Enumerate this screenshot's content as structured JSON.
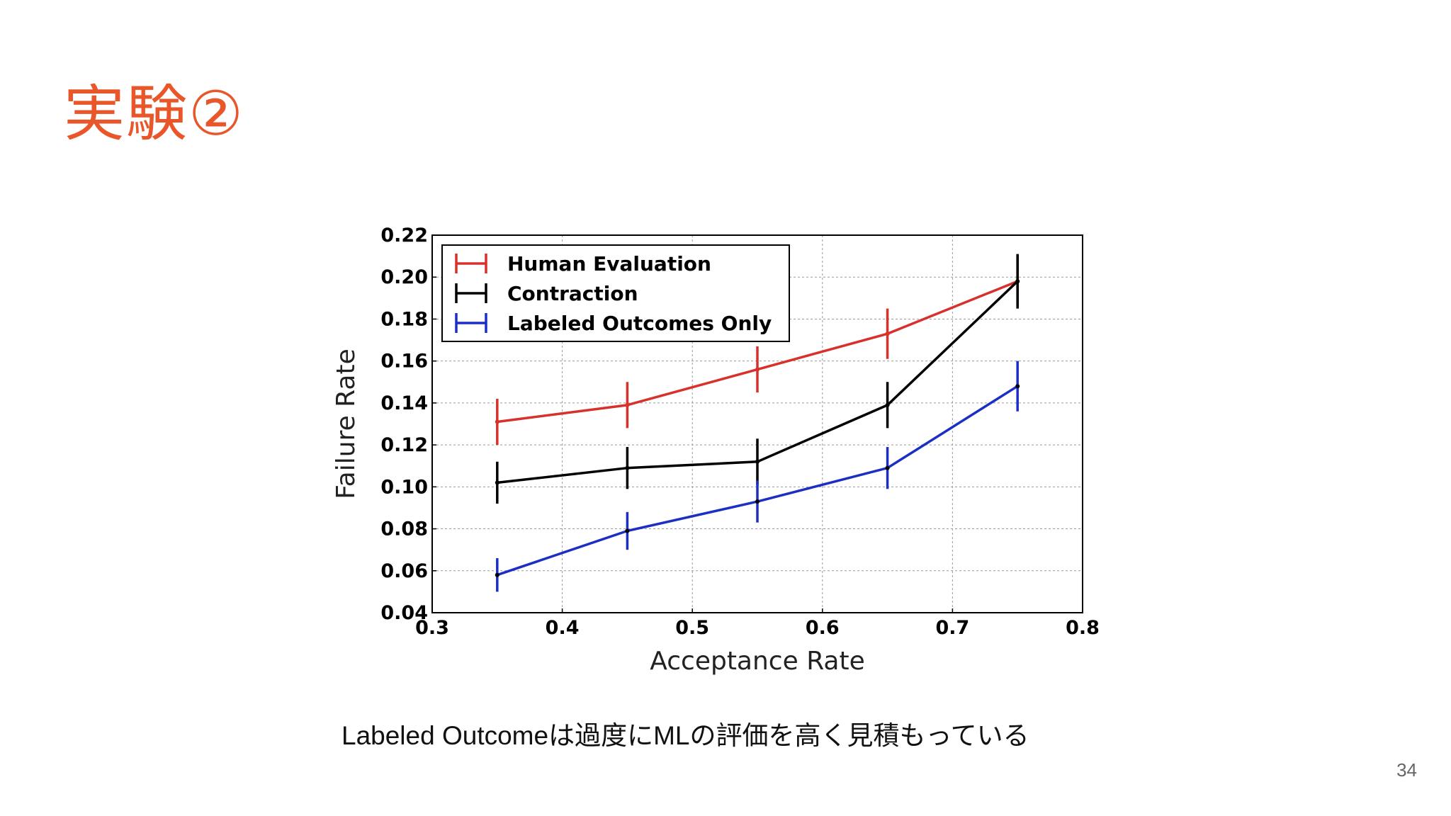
{
  "slide": {
    "title": "実験②",
    "caption": "Labeled Outcomeは過度にMLの評価を高く見積もっている",
    "page_number": "34"
  },
  "chart_data": {
    "type": "line",
    "title": "",
    "xlabel": "Acceptance Rate",
    "ylabel": "Failure Rate",
    "xlim": [
      0.3,
      0.8
    ],
    "ylim": [
      0.04,
      0.22
    ],
    "xticks": [
      "0.3",
      "0.4",
      "0.5",
      "0.6",
      "0.7",
      "0.8"
    ],
    "yticks": [
      "0.04",
      "0.06",
      "0.08",
      "0.10",
      "0.12",
      "0.14",
      "0.16",
      "0.18",
      "0.20",
      "0.22"
    ],
    "grid": true,
    "legend_position": "top-left",
    "x": [
      0.35,
      0.45,
      0.55,
      0.65,
      0.75
    ],
    "series": [
      {
        "name": "Human Evaluation",
        "color": "#d8312b",
        "values": [
          0.131,
          0.139,
          0.156,
          0.173,
          0.198
        ],
        "errors": [
          0.011,
          0.011,
          0.011,
          0.012,
          0.012
        ]
      },
      {
        "name": "Contraction",
        "color": "#000000",
        "values": [
          0.102,
          0.109,
          0.112,
          0.139,
          0.198
        ],
        "errors": [
          0.01,
          0.01,
          0.011,
          0.011,
          0.013
        ]
      },
      {
        "name": "Labeled Outcomes Only",
        "color": "#1c2fc4",
        "values": [
          0.058,
          0.079,
          0.093,
          0.109,
          0.148
        ],
        "errors": [
          0.008,
          0.009,
          0.01,
          0.01,
          0.012
        ]
      }
    ]
  }
}
